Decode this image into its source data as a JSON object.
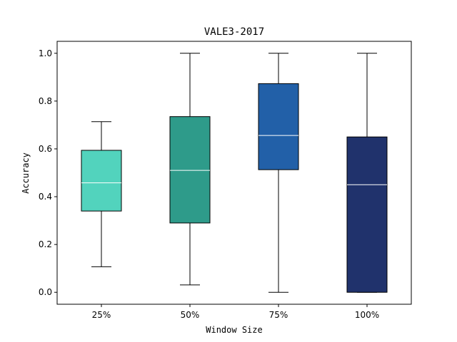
{
  "chart_data": {
    "type": "boxplot",
    "title": "VALE3-2017",
    "xlabel": "Window Size",
    "ylabel": "Accuracy",
    "ylim": [
      -0.05,
      1.05
    ],
    "yticks": [
      "0.0",
      "0.2",
      "0.4",
      "0.6",
      "0.8",
      "1.0"
    ],
    "grid": false,
    "categories": [
      "25%",
      "50%",
      "75%",
      "100%"
    ],
    "boxes": [
      {
        "whisker_low": 0.107,
        "q1": 0.34,
        "median": 0.458,
        "q3": 0.594,
        "whisker_high": 0.714,
        "color": "#52d3bd"
      },
      {
        "whisker_low": 0.031,
        "q1": 0.29,
        "median": 0.51,
        "q3": 0.735,
        "whisker_high": 1.0,
        "color": "#2e9b8a"
      },
      {
        "whisker_low": 0.0,
        "q1": 0.513,
        "median": 0.656,
        "q3": 0.873,
        "whisker_high": 1.0,
        "color": "#2260a8"
      },
      {
        "whisker_low": 0.0,
        "q1": 0.0,
        "median": 0.45,
        "q3": 0.65,
        "whisker_high": 1.0,
        "color": "#20326c"
      }
    ]
  }
}
